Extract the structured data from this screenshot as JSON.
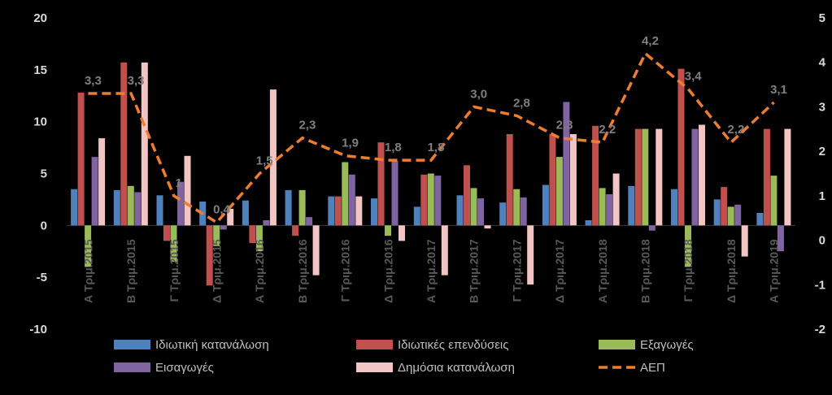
{
  "chart_data": {
    "type": "bar",
    "categories": [
      "Α Τριμ.2015",
      "Β Τριμ.2015",
      "Γ Τριμ.2015",
      "Δ Τριμ.2015",
      "Α Τριμ.2016",
      "Β Τριμ.2016",
      "Γ Τριμ.2016",
      "Δ Τριμ.2016",
      "Α Τριμ.2017",
      "Β Τριμ.2017",
      "Γ Τριμ.2017",
      "Δ Τριμ.2017",
      "Α Τριμ.2018",
      "Β Τριμ.2018",
      "Γ Τριμ.2018",
      "Δ Τριμ.2018",
      "Α Τριμ.2019"
    ],
    "y_left": {
      "range": [
        -10,
        20
      ],
      "ticks": [
        "-10",
        "-5",
        "0",
        "5",
        "10",
        "15",
        "20"
      ]
    },
    "y_right": {
      "range": [
        -2,
        5
      ],
      "ticks": [
        "-2",
        "-1",
        "0",
        "1",
        "2",
        "3",
        "4",
        "5"
      ]
    },
    "series": [
      {
        "name": "Ιδιωτική κατανάλωση",
        "axis": "left",
        "color": "#4f81bd",
        "values": [
          3.5,
          3.4,
          2.9,
          2.3,
          2.4,
          3.4,
          2.8,
          2.6,
          1.8,
          2.9,
          2.2,
          3.9,
          0.5,
          3.8,
          3.5,
          2.5,
          1.2
        ]
      },
      {
        "name": "Ιδιωτικές επενδύσεις",
        "axis": "left",
        "color": "#c0504d",
        "values": [
          12.8,
          15.7,
          -1.5,
          -5.8,
          -1.7,
          -1.0,
          2.8,
          8.0,
          4.9,
          5.8,
          8.8,
          8.8,
          9.6,
          9.3,
          15.1,
          3.7,
          9.3
        ]
      },
      {
        "name": "Εξαγωγές",
        "axis": "left",
        "color": "#9bbb59",
        "values": [
          -4.0,
          3.8,
          -3.5,
          -2.0,
          -2.5,
          3.4,
          6.1,
          -1.0,
          5.0,
          3.6,
          3.5,
          6.6,
          3.6,
          9.3,
          -4.0,
          1.8,
          4.8
        ]
      },
      {
        "name": "Εισαγωγές",
        "axis": "left",
        "color": "#8064a2",
        "values": [
          6.6,
          3.2,
          4.2,
          -0.4,
          0.5,
          0.8,
          4.9,
          6.2,
          4.8,
          2.6,
          2.7,
          11.9,
          3.0,
          -0.5,
          9.3,
          2.0,
          -2.5
        ]
      },
      {
        "name": "Δημόσια κατανάλωση",
        "axis": "left",
        "color": "#f2c4c4",
        "values": [
          8.4,
          15.7,
          6.7,
          1.6,
          13.1,
          -4.8,
          2.8,
          -1.5,
          -4.8,
          -0.3,
          -5.7,
          8.8,
          5.0,
          9.3,
          9.7,
          -3.0,
          9.3
        ]
      },
      {
        "name": "ΑΕΠ",
        "axis": "right",
        "type": "line",
        "color": "#ed7d31",
        "values": [
          3.3,
          3.3,
          1.0,
          0.4,
          1.5,
          2.3,
          1.9,
          1.8,
          1.8,
          3.0,
          2.8,
          2.3,
          2.2,
          4.2,
          3.4,
          2.2,
          3.1
        ],
        "labels": [
          "3,3",
          "3,3",
          "1",
          "0,4",
          "1,5",
          "2,3",
          "1,9",
          "1,8",
          "1,8",
          "3,0",
          "2,8",
          "2,3",
          "2,2",
          "4,2",
          "3,4",
          "2,2",
          "3,1"
        ]
      }
    ],
    "legend": {
      "placement": "bottom",
      "items": [
        "Ιδιωτική κατανάλωση",
        "Ιδιωτικές επενδύσεις",
        "Εξαγωγές",
        "Εισαγωγές",
        "Δημόσια κατανάλωση",
        "ΑΕΠ"
      ]
    },
    "grid": false,
    "title": "",
    "xlabel": "",
    "ylabel": ""
  }
}
